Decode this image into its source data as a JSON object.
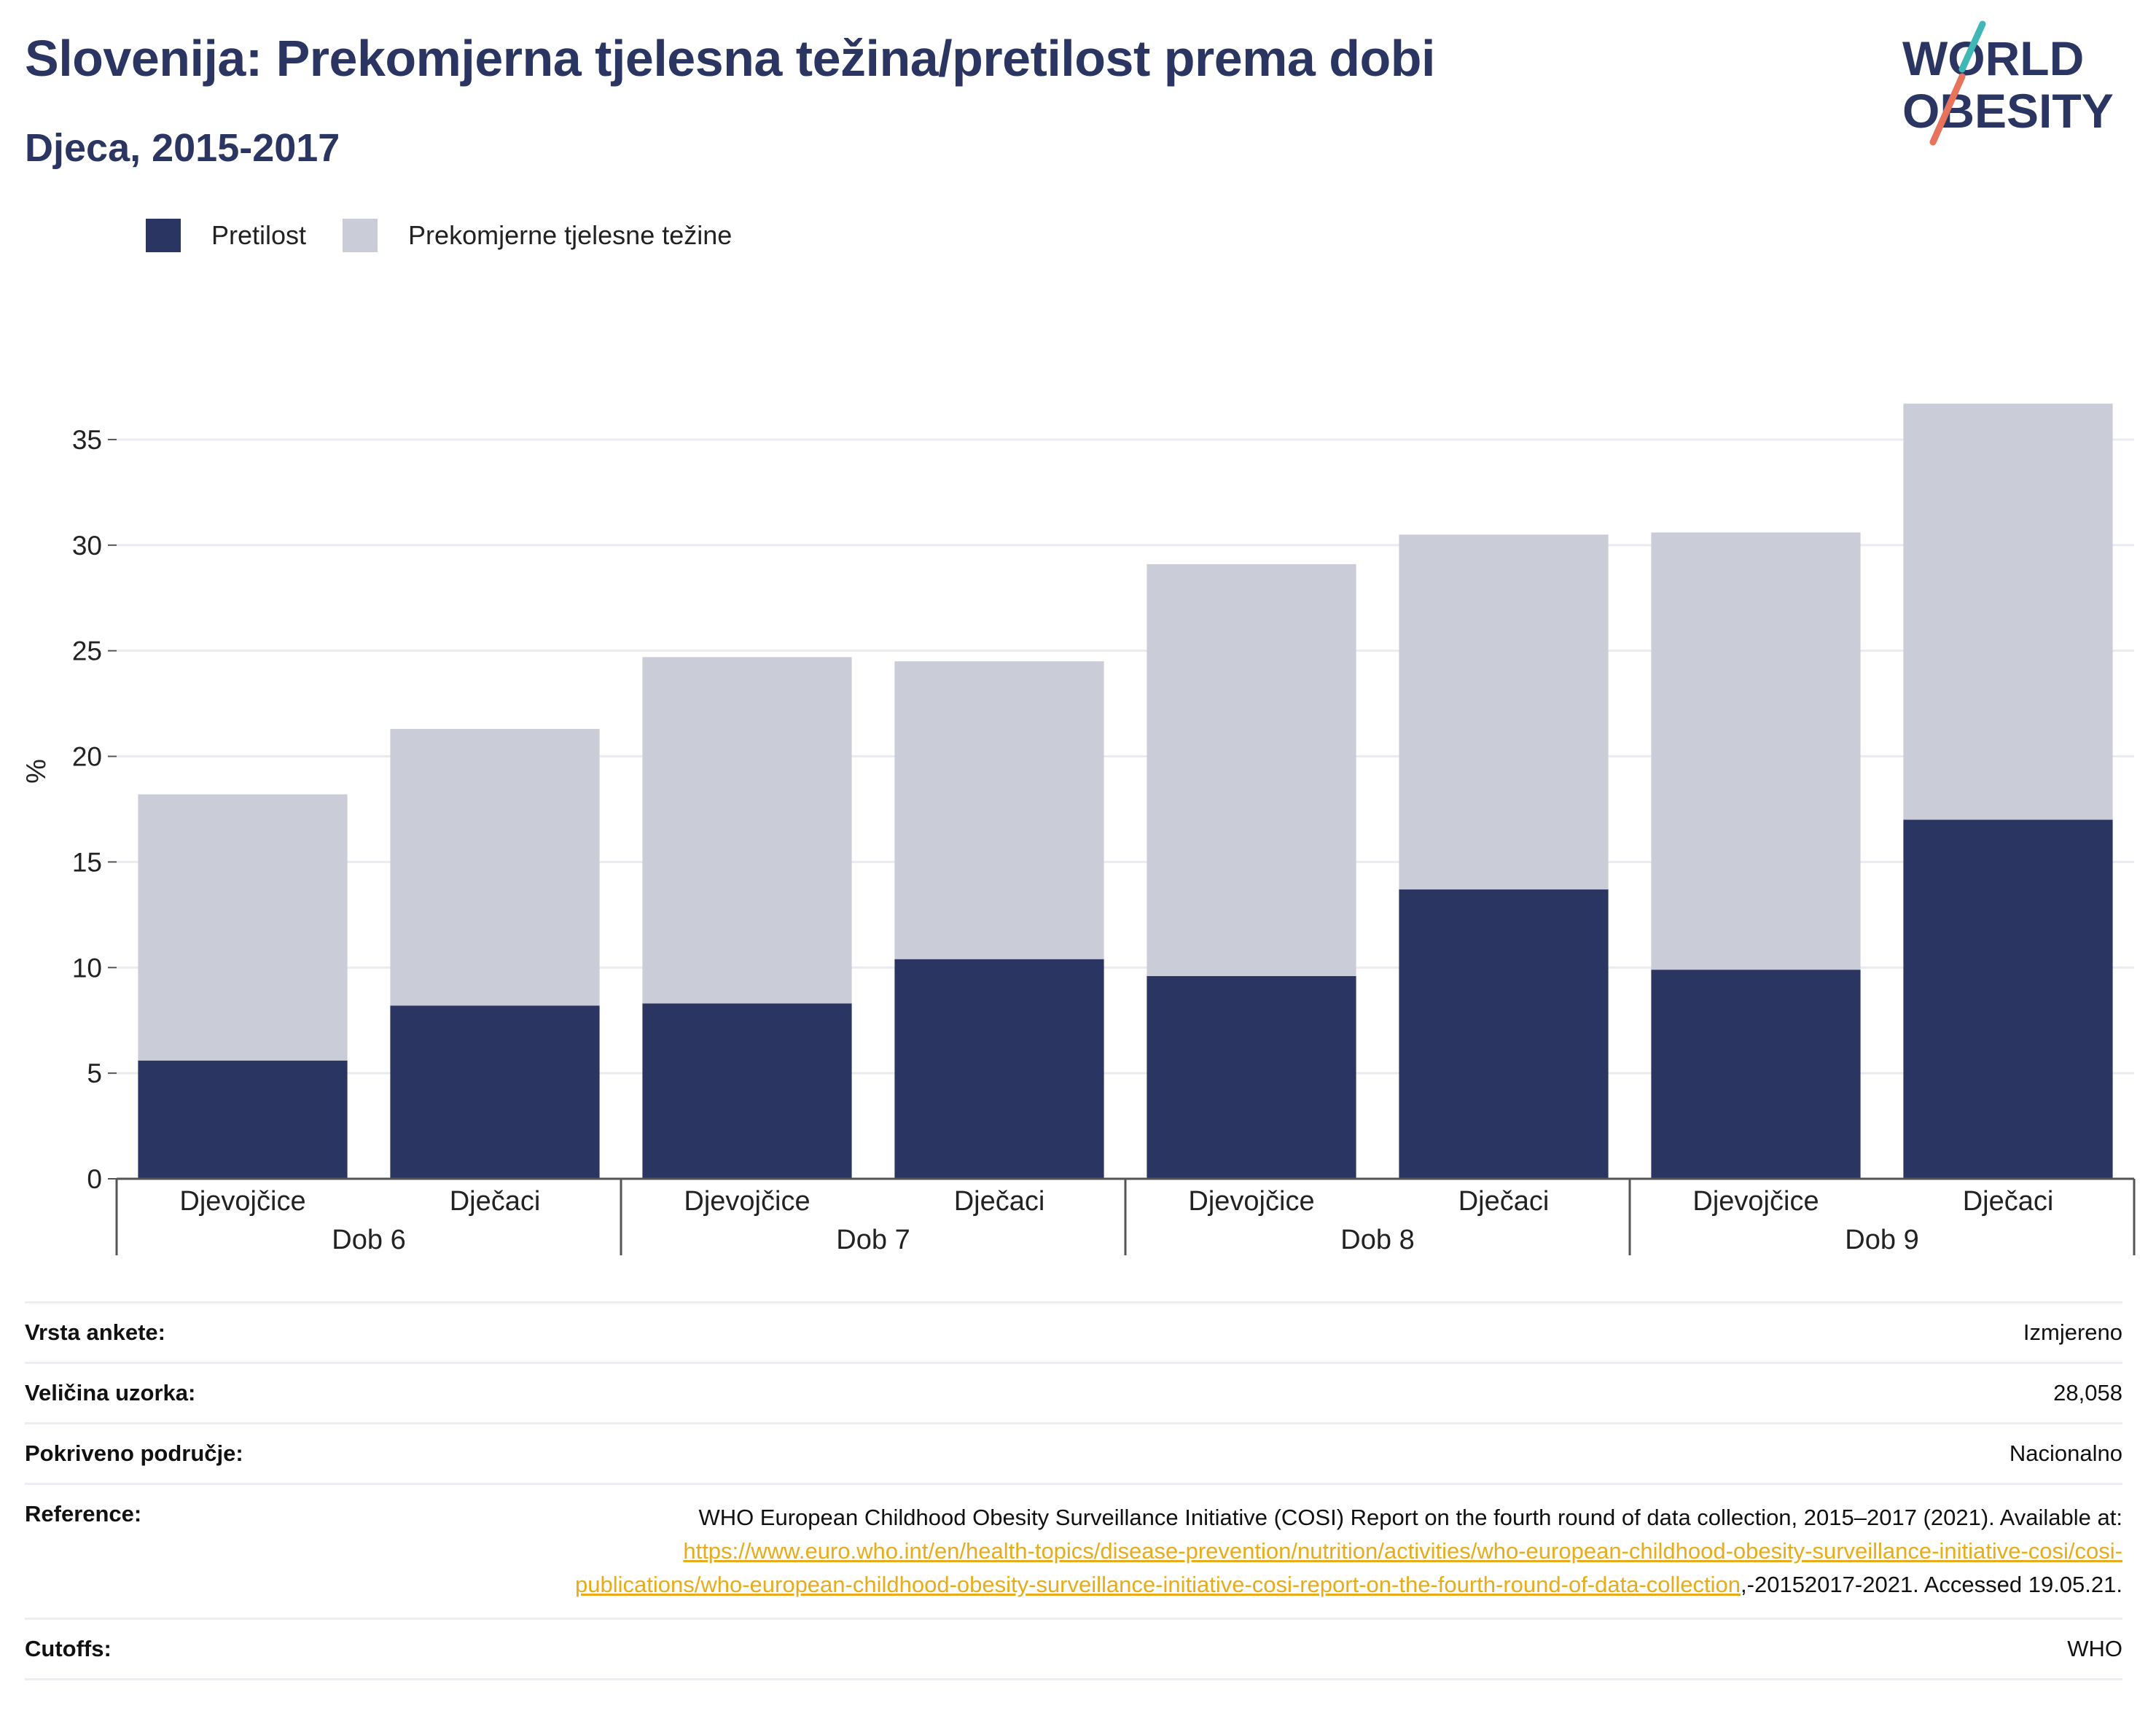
{
  "header": {
    "title": "Slovenija: Prekomjerna tjelesna težina/pretilost prema dobi",
    "subtitle": "Djeca, 2015-2017",
    "logo_line1": "WORLD",
    "logo_line2": "OBESITY"
  },
  "colors": {
    "obesity": "#2a3561",
    "overweight": "#cacdd8",
    "title": "#2a3561",
    "link": "#e8ac1a",
    "logo_teal": "#3fb8b5",
    "logo_coral": "#e8735c"
  },
  "chart_data": {
    "type": "bar",
    "stacked": true,
    "ylabel": "%",
    "ylim": [
      0,
      37
    ],
    "yticks": [
      0,
      5,
      10,
      15,
      20,
      25,
      30,
      35
    ],
    "grid": true,
    "legend_position": "top-left",
    "groups": [
      "Dob 6",
      "Dob 7",
      "Dob 8",
      "Dob 9"
    ],
    "categories": [
      "Djevojčice",
      "Dječaci",
      "Djevojčice",
      "Dječaci",
      "Djevojčice",
      "Dječaci",
      "Djevojčice",
      "Dječaci"
    ],
    "series": [
      {
        "name": "Pretilost",
        "values": [
          5.6,
          8.2,
          8.3,
          10.4,
          9.6,
          13.7,
          9.9,
          17.0
        ]
      },
      {
        "name": "Prekomjerne tjelesne težine",
        "values": [
          12.6,
          13.1,
          16.4,
          14.1,
          19.5,
          16.8,
          20.7,
          19.7
        ]
      }
    ]
  },
  "info": {
    "survey_label": "Vrsta ankete:",
    "survey_value": "Izmjereno",
    "sample_label": "Veličina uzorka:",
    "sample_value": "28,058",
    "area_label": "Pokriveno područje:",
    "area_value": "Nacionalno",
    "ref_label": "Reference:",
    "ref_text": "WHO European Childhood Obesity Surveillance Initiative (COSI) Report on the fourth round of data collection, 2015–2017 (2021). Available at: ",
    "ref_link": "https://www.euro.who.int/en/health-topics/disease-prevention/nutrition/activities/who-european-childhood-obesity-surveillance-initiative-cosi/cosi-publications/who-european-childhood-obesity-surveillance-initiative-cosi-report-on-the-fourth-round-of-data-collection",
    "ref_suffix": ",-20152017-2021. Accessed 19.05.21.",
    "cutoffs_label": "Cutoffs:",
    "cutoffs_value": "WHO"
  }
}
